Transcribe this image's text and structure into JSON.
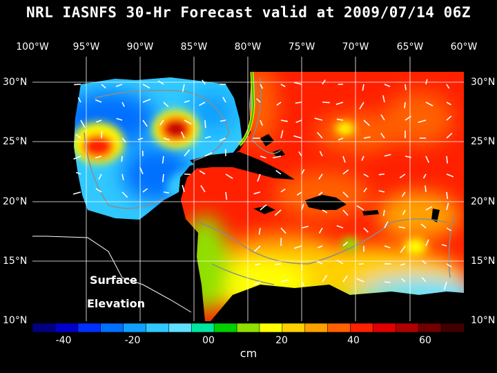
{
  "title": "NRL IASNFS  30-Hr Forecast valid at 2009/07/14 06Z",
  "lon_labels": [
    "100°W",
    "95°W",
    "90°W",
    "85°W",
    "80°W",
    "75°W",
    "70°W",
    "65°W",
    "60°W"
  ],
  "lat_labels": [
    "30°N",
    "25°N",
    "20°N",
    "15°N",
    "10°N"
  ],
  "map_labels": {
    "line1": "Surface",
    "line2": "Elevation"
  },
  "colorbar": {
    "ticks": [
      "-40",
      "-20",
      "00",
      "20",
      "40",
      "60"
    ],
    "units": "cm",
    "colors": [
      "#000080",
      "#0000cd",
      "#0030ff",
      "#0070ff",
      "#10a0ff",
      "#30c8ff",
      "#60e0ff",
      "#00e8a0",
      "#00d000",
      "#90e000",
      "#ffff00",
      "#ffd000",
      "#ffa000",
      "#ff6000",
      "#ff2000",
      "#e00000",
      "#b00000",
      "#700000",
      "#400000"
    ]
  },
  "map_colors": {
    "land": "#000000",
    "grid": "#ffffff",
    "coast": "#8c8c8c",
    "arrow": "#ffffff"
  }
}
